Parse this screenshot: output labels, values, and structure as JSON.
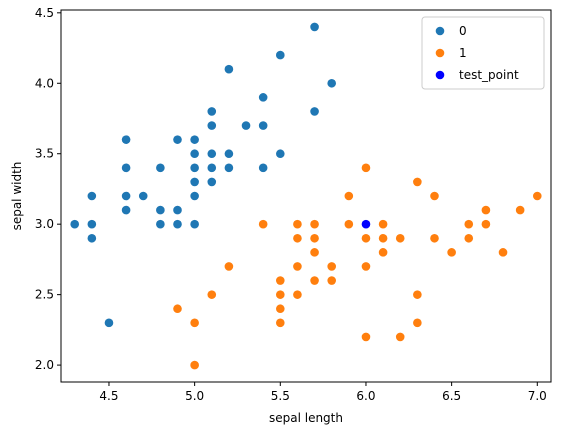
{
  "chart_data": {
    "type": "scatter",
    "xlabel": "sepal length",
    "ylabel": "sepal width",
    "xlim": [
      4.22,
      7.08
    ],
    "ylim": [
      1.88,
      4.52
    ],
    "xticks": [
      "4.5",
      "5.0",
      "5.5",
      "6.0",
      "6.5",
      "7.0"
    ],
    "yticks": [
      "2.0",
      "2.5",
      "3.0",
      "3.5",
      "4.0",
      "4.5"
    ],
    "grid": false,
    "legend_position": "top-right",
    "series": [
      {
        "name": "0",
        "color": "#1f77b4",
        "points": [
          [
            4.3,
            3.0
          ],
          [
            4.4,
            2.9
          ],
          [
            4.4,
            3.0
          ],
          [
            4.4,
            3.2
          ],
          [
            4.5,
            2.3
          ],
          [
            4.6,
            3.1
          ],
          [
            4.6,
            3.2
          ],
          [
            4.6,
            3.4
          ],
          [
            4.6,
            3.6
          ],
          [
            4.7,
            3.2
          ],
          [
            4.8,
            3.0
          ],
          [
            4.8,
            3.1
          ],
          [
            4.8,
            3.4
          ],
          [
            4.9,
            3.0
          ],
          [
            4.9,
            3.1
          ],
          [
            4.9,
            3.6
          ],
          [
            5.0,
            3.0
          ],
          [
            5.0,
            3.2
          ],
          [
            5.0,
            3.3
          ],
          [
            5.0,
            3.4
          ],
          [
            5.0,
            3.5
          ],
          [
            5.0,
            3.6
          ],
          [
            5.1,
            3.3
          ],
          [
            5.1,
            3.4
          ],
          [
            5.1,
            3.5
          ],
          [
            5.1,
            3.7
          ],
          [
            5.1,
            3.8
          ],
          [
            5.2,
            3.4
          ],
          [
            5.2,
            3.5
          ],
          [
            5.2,
            4.1
          ],
          [
            5.3,
            3.7
          ],
          [
            5.4,
            3.4
          ],
          [
            5.4,
            3.7
          ],
          [
            5.4,
            3.9
          ],
          [
            5.5,
            3.5
          ],
          [
            5.5,
            4.2
          ],
          [
            5.7,
            3.8
          ],
          [
            5.7,
            4.4
          ],
          [
            5.8,
            4.0
          ]
        ]
      },
      {
        "name": "1",
        "color": "#ff7f0e",
        "points": [
          [
            4.9,
            2.4
          ],
          [
            5.0,
            2.0
          ],
          [
            5.0,
            2.3
          ],
          [
            5.1,
            2.5
          ],
          [
            5.2,
            2.7
          ],
          [
            5.4,
            3.0
          ],
          [
            5.5,
            2.3
          ],
          [
            5.5,
            2.4
          ],
          [
            5.5,
            2.5
          ],
          [
            5.5,
            2.6
          ],
          [
            5.6,
            2.5
          ],
          [
            5.6,
            2.7
          ],
          [
            5.6,
            2.9
          ],
          [
            5.6,
            3.0
          ],
          [
            5.7,
            2.6
          ],
          [
            5.7,
            2.8
          ],
          [
            5.7,
            2.9
          ],
          [
            5.7,
            3.0
          ],
          [
            5.8,
            2.6
          ],
          [
            5.8,
            2.7
          ],
          [
            5.9,
            3.0
          ],
          [
            5.9,
            3.2
          ],
          [
            6.0,
            2.2
          ],
          [
            6.0,
            2.7
          ],
          [
            6.0,
            2.9
          ],
          [
            6.0,
            3.4
          ],
          [
            6.1,
            2.8
          ],
          [
            6.1,
            2.9
          ],
          [
            6.1,
            3.0
          ],
          [
            6.2,
            2.2
          ],
          [
            6.2,
            2.9
          ],
          [
            6.3,
            2.3
          ],
          [
            6.3,
            2.5
          ],
          [
            6.3,
            3.3
          ],
          [
            6.4,
            2.9
          ],
          [
            6.4,
            3.2
          ],
          [
            6.5,
            2.8
          ],
          [
            6.6,
            2.9
          ],
          [
            6.6,
            3.0
          ],
          [
            6.7,
            3.0
          ],
          [
            6.7,
            3.1
          ],
          [
            6.8,
            2.8
          ],
          [
            6.9,
            3.1
          ],
          [
            7.0,
            3.2
          ]
        ]
      },
      {
        "name": "test_point",
        "color": "#0000ff",
        "points": [
          [
            6.0,
            3.0
          ]
        ]
      }
    ]
  }
}
